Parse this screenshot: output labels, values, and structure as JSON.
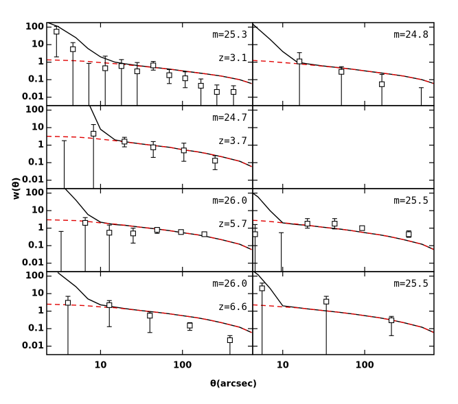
{
  "xlabel": "θ(arcsec)",
  "ylabel": "w(θ)",
  "chart_data": [
    {
      "type": "line",
      "log": true,
      "annotations": [
        "m=25.3",
        "z=3.1"
      ],
      "xlim": [
        2.2,
        720
      ],
      "ylim": [
        0.0033,
        180
      ],
      "xticks": [
        10,
        100
      ],
      "yticks": [
        0.01,
        0.1,
        1,
        10,
        100
      ],
      "points": {
        "x": [
          2.9,
          4.6,
          7.2,
          11.4,
          18,
          28,
          44,
          69,
          108,
          168,
          263,
          420
        ],
        "y": [
          55,
          5.5,
          null,
          0.45,
          0.6,
          0.3,
          0.65,
          0.18,
          0.12,
          0.045,
          0.02,
          0.02
        ],
        "ylow": [
          2,
          0.001,
          0.001,
          0.001,
          0.001,
          0.001,
          0.35,
          0.06,
          0.035,
          0.001,
          0.001,
          0.001
        ],
        "yhigh": [
          110,
          13,
          0.85,
          2.2,
          1.4,
          0.95,
          1.1,
          0.38,
          0.28,
          0.11,
          0.05,
          0.045
        ]
      },
      "series": [
        {
          "color": "#000000",
          "dash": false,
          "x": [
            2.2,
            3,
            5,
            7,
            10,
            15,
            20,
            30,
            50,
            70,
            100,
            150,
            200,
            300,
            500,
            700
          ],
          "values": [
            190,
            110,
            25,
            6,
            2,
            1.0,
            0.8,
            0.62,
            0.48,
            0.4,
            0.32,
            0.25,
            0.21,
            0.16,
            0.1,
            0.06
          ]
        },
        {
          "color": "#e00000",
          "dash": true,
          "x": [
            2.2,
            3,
            5,
            7,
            10,
            15,
            20,
            30,
            50,
            70,
            100,
            150,
            200,
            300,
            500,
            700
          ],
          "values": [
            1.35,
            1.3,
            1.2,
            1.1,
            0.95,
            0.82,
            0.72,
            0.6,
            0.47,
            0.4,
            0.32,
            0.25,
            0.21,
            0.16,
            0.1,
            0.06
          ]
        }
      ]
    },
    {
      "type": "line",
      "log": true,
      "annotations": [
        "m=24.8"
      ],
      "xlim": [
        4.3,
        700
      ],
      "ylim": [
        0.0033,
        180
      ],
      "xticks": [
        10,
        100
      ],
      "yticks": [
        0.01,
        0.1,
        1,
        10,
        100
      ],
      "points": {
        "x": [
          16,
          52,
          162,
          490
        ],
        "y": [
          1.1,
          0.28,
          0.055,
          null
        ],
        "ylow": [
          0.001,
          0.001,
          0.001,
          0.001
        ],
        "yhigh": [
          3.5,
          0.55,
          0.2,
          0.035
        ]
      },
      "series": [
        {
          "color": "#000000",
          "dash": false,
          "x": [
            4.3,
            5,
            7,
            10,
            15,
            20,
            30,
            50,
            70,
            100,
            150,
            200,
            300,
            500,
            700
          ],
          "values": [
            150,
            80,
            20,
            4,
            1.0,
            0.8,
            0.62,
            0.48,
            0.4,
            0.32,
            0.25,
            0.21,
            0.16,
            0.1,
            0.06
          ]
        },
        {
          "color": "#e00000",
          "dash": true,
          "x": [
            4.3,
            5,
            7,
            10,
            15,
            20,
            30,
            50,
            70,
            100,
            150,
            200,
            300,
            500,
            700
          ],
          "values": [
            1.25,
            1.2,
            1.1,
            0.95,
            0.82,
            0.72,
            0.6,
            0.47,
            0.4,
            0.32,
            0.25,
            0.21,
            0.16,
            0.1,
            0.06
          ]
        }
      ]
    },
    {
      "type": "line",
      "log": true,
      "annotations": [
        "m=24.7",
        "z=3.7"
      ],
      "xlim": [
        2.2,
        720
      ],
      "ylim": [
        0.0033,
        180
      ],
      "xticks": [
        10,
        100
      ],
      "yticks": [
        0.01,
        0.1,
        1,
        10,
        100
      ],
      "points": {
        "x": [
          3.6,
          8.2,
          19.6,
          44,
          104,
          250
        ],
        "y": [
          null,
          4.5,
          1.6,
          0.75,
          0.5,
          0.13
        ],
        "ylow": [
          0.001,
          0.001,
          0.8,
          0.2,
          0.12,
          0.04
        ],
        "yhigh": [
          1.8,
          15,
          2.8,
          1.6,
          1.3,
          0.25
        ]
      },
      "series": [
        {
          "color": "#000000",
          "dash": false,
          "x": [
            2.2,
            3,
            5,
            7,
            10,
            15,
            20,
            30,
            50,
            70,
            100,
            150,
            200,
            300,
            500,
            700
          ],
          "values": [
            null,
            null,
            null,
            300,
            8,
            2.0,
            1.55,
            1.2,
            0.9,
            0.75,
            0.55,
            0.42,
            0.33,
            0.22,
            0.12,
            0.06
          ]
        },
        {
          "color": "#e00000",
          "dash": true,
          "x": [
            2.2,
            3,
            5,
            7,
            10,
            15,
            20,
            30,
            50,
            70,
            100,
            150,
            200,
            300,
            500,
            700
          ],
          "values": [
            3.2,
            3.1,
            2.9,
            2.6,
            2.2,
            1.8,
            1.5,
            1.2,
            0.9,
            0.75,
            0.55,
            0.42,
            0.33,
            0.22,
            0.12,
            0.06
          ]
        }
      ]
    },
    {
      "type": "line",
      "log": true,
      "annotations": [],
      "xlim": [
        4.3,
        700
      ],
      "ylim": [
        0.0033,
        180
      ],
      "xticks": [
        10,
        100
      ],
      "yticks": [
        0.01,
        0.1,
        1,
        10,
        100
      ],
      "points": {
        "x": [],
        "y": [],
        "ylow": [],
        "yhigh": []
      },
      "series": []
    },
    {
      "type": "line",
      "log": true,
      "annotations": [
        "m=26.0",
        "z=5.7"
      ],
      "xlim": [
        2.2,
        720
      ],
      "ylim": [
        0.0033,
        180
      ],
      "xticks": [
        10,
        100
      ],
      "yticks": [
        0.01,
        0.1,
        1,
        10,
        100
      ],
      "points": {
        "x": [
          3.3,
          6.5,
          12.8,
          25,
          49,
          96,
          185
        ],
        "y": [
          null,
          2,
          0.55,
          0.5,
          0.8,
          0.6,
          0.45
        ],
        "ylow": [
          0.001,
          0.001,
          0.001,
          0.14,
          0.5,
          0.45,
          0.38
        ],
        "yhigh": [
          0.65,
          4,
          1.5,
          1.0,
          1.1,
          0.8,
          0.5
        ]
      },
      "series": [
        {
          "color": "#000000",
          "dash": false,
          "x": [
            2.2,
            3,
            5,
            7,
            10,
            15,
            20,
            30,
            50,
            70,
            100,
            150,
            200,
            300,
            500,
            700
          ],
          "values": [
            null,
            500,
            40,
            6,
            2.2,
            1.6,
            1.45,
            1.15,
            0.88,
            0.72,
            0.55,
            0.42,
            0.33,
            0.22,
            0.12,
            0.06
          ]
        },
        {
          "color": "#e00000",
          "dash": true,
          "x": [
            2.2,
            3,
            5,
            7,
            10,
            15,
            20,
            30,
            50,
            70,
            100,
            150,
            200,
            300,
            500,
            700
          ],
          "values": [
            3.0,
            2.9,
            2.7,
            2.4,
            2.0,
            1.7,
            1.45,
            1.15,
            0.88,
            0.72,
            0.55,
            0.42,
            0.33,
            0.22,
            0.12,
            0.06
          ]
        }
      ]
    },
    {
      "type": "line",
      "log": true,
      "annotations": [
        "m=25.5"
      ],
      "xlim": [
        4.3,
        700
      ],
      "ylim": [
        0.0033,
        180
      ],
      "xticks": [
        10,
        100
      ],
      "yticks": [
        0.01,
        0.1,
        1,
        10,
        100
      ],
      "points": {
        "x": [
          4.6,
          9.6,
          20,
          43,
          93,
          345
        ],
        "y": [
          0.45,
          null,
          1.8,
          1.8,
          1.0,
          0.45
        ],
        "ylow": [
          0.001,
          0.001,
          1.0,
          0.9,
          0.75,
          0.3
        ],
        "yhigh": [
          1.6,
          0.55,
          3.5,
          3.5,
          1.3,
          0.7
        ]
      },
      "series": [
        {
          "color": "#000000",
          "dash": false,
          "x": [
            4.3,
            5,
            7,
            10,
            15,
            20,
            30,
            50,
            70,
            100,
            150,
            200,
            300,
            500,
            700
          ],
          "values": [
            100,
            60,
            10,
            2.0,
            1.6,
            1.45,
            1.15,
            0.88,
            0.72,
            0.55,
            0.42,
            0.33,
            0.22,
            0.12,
            0.06
          ]
        },
        {
          "color": "#e00000",
          "dash": true,
          "x": [
            4.3,
            5,
            7,
            10,
            15,
            20,
            30,
            50,
            70,
            100,
            150,
            200,
            300,
            500,
            700
          ],
          "values": [
            2.8,
            2.7,
            2.4,
            2.0,
            1.7,
            1.45,
            1.15,
            0.88,
            0.72,
            0.55,
            0.42,
            0.33,
            0.22,
            0.12,
            0.06
          ]
        }
      ]
    },
    {
      "type": "line",
      "log": true,
      "annotations": [
        "m=26.0",
        "z=6.6"
      ],
      "xlim": [
        2.2,
        720
      ],
      "ylim": [
        0.0033,
        180
      ],
      "xticks": [
        10,
        100
      ],
      "yticks": [
        0.01,
        0.1,
        1,
        10,
        100
      ],
      "points": {
        "x": [
          4.0,
          12.8,
          40,
          123,
          380
        ],
        "y": [
          3,
          2.2,
          0.55,
          0.15,
          0.022
        ],
        "ylow": [
          0.001,
          0.13,
          0.06,
          0.08,
          0.001
        ],
        "yhigh": [
          7,
          4,
          0.9,
          0.22,
          0.04
        ]
      },
      "series": [
        {
          "color": "#000000",
          "dash": false,
          "x": [
            2.2,
            3,
            5,
            7,
            10,
            15,
            20,
            30,
            50,
            70,
            100,
            150,
            200,
            300,
            500,
            700
          ],
          "values": [
            null,
            160,
            25,
            5,
            2.3,
            1.7,
            1.4,
            1.1,
            0.85,
            0.7,
            0.55,
            0.42,
            0.33,
            0.22,
            0.12,
            0.06
          ]
        },
        {
          "color": "#e00000",
          "dash": true,
          "x": [
            2.2,
            3,
            5,
            7,
            10,
            15,
            20,
            30,
            50,
            70,
            100,
            150,
            200,
            300,
            500,
            700
          ],
          "values": [
            2.5,
            2.4,
            2.2,
            2.0,
            1.75,
            1.55,
            1.35,
            1.1,
            0.85,
            0.7,
            0.55,
            0.42,
            0.33,
            0.22,
            0.12,
            0.06
          ]
        }
      ]
    },
    {
      "type": "line",
      "log": true,
      "annotations": [
        "m=25.5"
      ],
      "xlim": [
        4.3,
        700
      ],
      "ylim": [
        0.0033,
        180
      ],
      "xticks": [
        10,
        100
      ],
      "yticks": [
        0.01,
        0.1,
        1,
        10,
        100
      ],
      "points": {
        "x": [
          5.6,
          34,
          212
        ],
        "y": [
          20,
          3.5,
          0.3
        ],
        "ylow": [
          0.001,
          0.001,
          0.04
        ],
        "yhigh": [
          40,
          7,
          0.5
        ]
      },
      "series": [
        {
          "color": "#000000",
          "dash": false,
          "x": [
            4.3,
            5,
            7,
            10,
            15,
            20,
            30,
            50,
            70,
            100,
            150,
            200,
            300,
            500,
            700
          ],
          "values": [
            200,
            120,
            20,
            2.0,
            1.6,
            1.35,
            1.1,
            0.85,
            0.7,
            0.55,
            0.42,
            0.33,
            0.22,
            0.12,
            0.06
          ]
        },
        {
          "color": "#e00000",
          "dash": true,
          "x": [
            4.3,
            5,
            7,
            10,
            15,
            20,
            30,
            50,
            70,
            100,
            150,
            200,
            300,
            500,
            700
          ],
          "values": [
            2.3,
            2.2,
            2.0,
            1.75,
            1.55,
            1.35,
            1.1,
            0.85,
            0.7,
            0.55,
            0.42,
            0.33,
            0.22,
            0.12,
            0.06
          ]
        }
      ]
    }
  ]
}
